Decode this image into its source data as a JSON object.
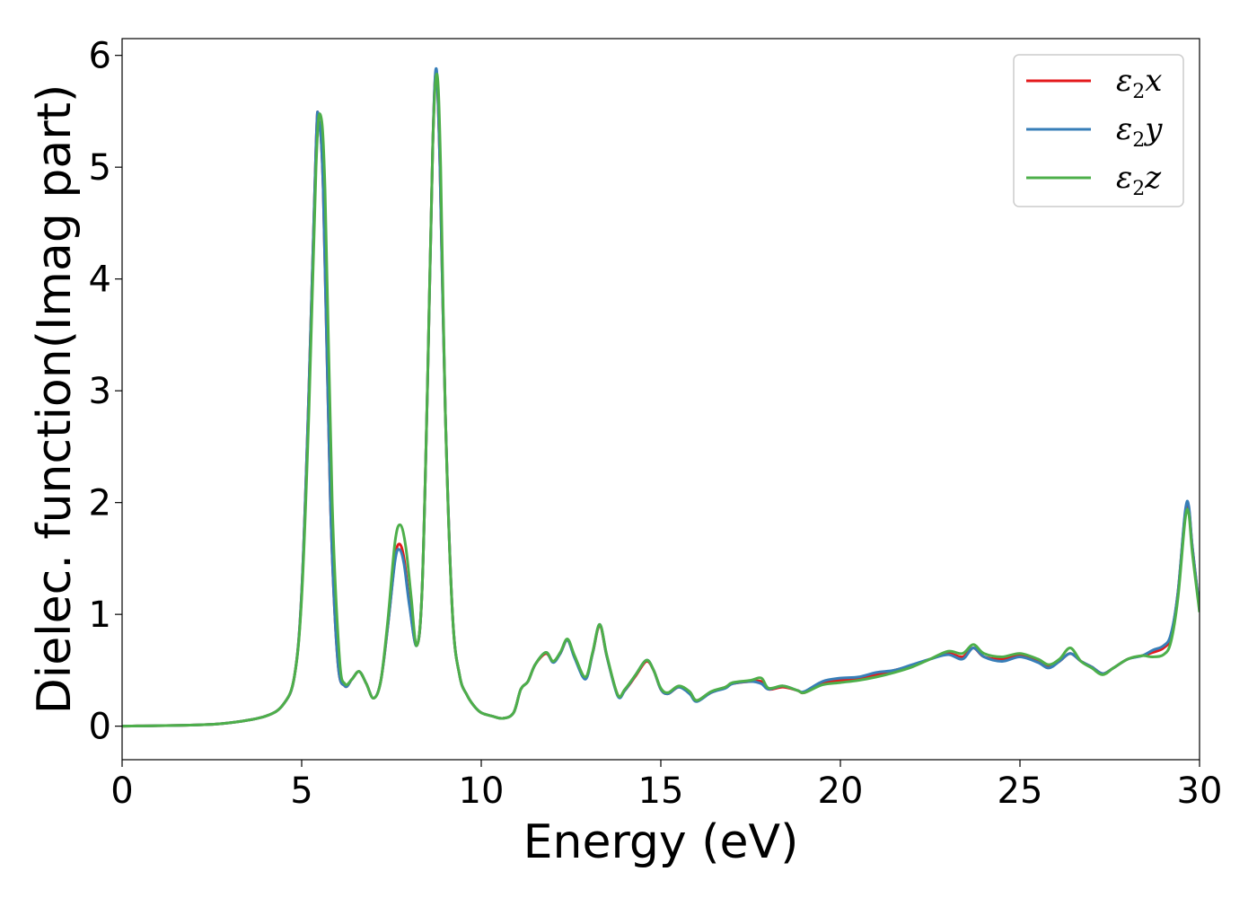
{
  "chart_data": {
    "type": "line",
    "xlabel": "Energy (eV)",
    "ylabel": "Dielec. function(Imag part)",
    "xlim": [
      0,
      30
    ],
    "ylim": [
      -0.3,
      6.15
    ],
    "xticks": [
      0,
      5,
      10,
      15,
      20,
      25,
      30
    ],
    "yticks": [
      0,
      1,
      2,
      3,
      4,
      5,
      6
    ],
    "grid": false,
    "legend_position": "top-right",
    "series": [
      {
        "name": "ε2x",
        "legend": {
          "symbol": "ε",
          "sub": "2",
          "var": "x"
        },
        "color": "#e41a1c",
        "points": [
          [
            0,
            0
          ],
          [
            2,
            0.01
          ],
          [
            3,
            0.03
          ],
          [
            4,
            0.09
          ],
          [
            4.5,
            0.2
          ],
          [
            4.8,
            0.45
          ],
          [
            5.0,
            1.2
          ],
          [
            5.2,
            3.0
          ],
          [
            5.4,
            5.2
          ],
          [
            5.47,
            5.43
          ],
          [
            5.6,
            4.8
          ],
          [
            5.8,
            2.0
          ],
          [
            6.0,
            0.6
          ],
          [
            6.2,
            0.36
          ],
          [
            6.4,
            0.42
          ],
          [
            6.6,
            0.49
          ],
          [
            6.8,
            0.38
          ],
          [
            7.0,
            0.25
          ],
          [
            7.2,
            0.4
          ],
          [
            7.4,
            0.9
          ],
          [
            7.6,
            1.5
          ],
          [
            7.72,
            1.63
          ],
          [
            7.85,
            1.5
          ],
          [
            8.0,
            1.1
          ],
          [
            8.2,
            0.72
          ],
          [
            8.35,
            1.2
          ],
          [
            8.5,
            3.0
          ],
          [
            8.65,
            5.2
          ],
          [
            8.75,
            5.85
          ],
          [
            8.85,
            5.0
          ],
          [
            9.0,
            2.8
          ],
          [
            9.2,
            1.0
          ],
          [
            9.4,
            0.45
          ],
          [
            9.6,
            0.28
          ],
          [
            9.8,
            0.18
          ],
          [
            10.0,
            0.12
          ],
          [
            10.3,
            0.09
          ],
          [
            10.6,
            0.07
          ],
          [
            10.9,
            0.12
          ],
          [
            11.1,
            0.33
          ],
          [
            11.3,
            0.4
          ],
          [
            11.5,
            0.55
          ],
          [
            11.8,
            0.65
          ],
          [
            12.0,
            0.58
          ],
          [
            12.2,
            0.65
          ],
          [
            12.4,
            0.77
          ],
          [
            12.6,
            0.62
          ],
          [
            12.9,
            0.43
          ],
          [
            13.1,
            0.65
          ],
          [
            13.3,
            0.9
          ],
          [
            13.5,
            0.62
          ],
          [
            13.8,
            0.28
          ],
          [
            14.0,
            0.32
          ],
          [
            14.3,
            0.45
          ],
          [
            14.6,
            0.58
          ],
          [
            14.8,
            0.5
          ],
          [
            15.0,
            0.33
          ],
          [
            15.2,
            0.29
          ],
          [
            15.5,
            0.35
          ],
          [
            15.8,
            0.3
          ],
          [
            16.0,
            0.23
          ],
          [
            16.4,
            0.3
          ],
          [
            16.8,
            0.35
          ],
          [
            17.0,
            0.38
          ],
          [
            17.5,
            0.4
          ],
          [
            17.8,
            0.4
          ],
          [
            18.0,
            0.33
          ],
          [
            18.4,
            0.35
          ],
          [
            18.8,
            0.32
          ],
          [
            19.0,
            0.3
          ],
          [
            19.5,
            0.38
          ],
          [
            20.0,
            0.41
          ],
          [
            20.5,
            0.42
          ],
          [
            21.0,
            0.46
          ],
          [
            21.5,
            0.5
          ],
          [
            22.0,
            0.54
          ],
          [
            22.5,
            0.6
          ],
          [
            23.0,
            0.65
          ],
          [
            23.4,
            0.62
          ],
          [
            23.7,
            0.7
          ],
          [
            24.0,
            0.62
          ],
          [
            24.5,
            0.6
          ],
          [
            25.0,
            0.63
          ],
          [
            25.5,
            0.58
          ],
          [
            25.8,
            0.53
          ],
          [
            26.1,
            0.58
          ],
          [
            26.4,
            0.65
          ],
          [
            26.7,
            0.58
          ],
          [
            27.0,
            0.53
          ],
          [
            27.3,
            0.47
          ],
          [
            27.6,
            0.52
          ],
          [
            28.0,
            0.6
          ],
          [
            28.4,
            0.63
          ],
          [
            28.7,
            0.66
          ],
          [
            29.0,
            0.7
          ],
          [
            29.2,
            0.8
          ],
          [
            29.4,
            1.2
          ],
          [
            29.6,
            1.9
          ],
          [
            29.7,
            1.95
          ],
          [
            29.8,
            1.6
          ],
          [
            30.0,
            1.05
          ]
        ]
      },
      {
        "name": "ε2y",
        "legend": {
          "symbol": "ε",
          "sub": "2",
          "var": "y"
        },
        "color": "#377eb8",
        "points": [
          [
            0,
            0
          ],
          [
            2,
            0.01
          ],
          [
            3,
            0.03
          ],
          [
            4,
            0.09
          ],
          [
            4.5,
            0.2
          ],
          [
            4.8,
            0.45
          ],
          [
            5.0,
            1.2
          ],
          [
            5.2,
            3.0
          ],
          [
            5.4,
            5.2
          ],
          [
            5.47,
            5.43
          ],
          [
            5.6,
            4.8
          ],
          [
            5.8,
            2.0
          ],
          [
            6.0,
            0.6
          ],
          [
            6.2,
            0.36
          ],
          [
            6.4,
            0.42
          ],
          [
            6.6,
            0.49
          ],
          [
            6.8,
            0.38
          ],
          [
            7.0,
            0.25
          ],
          [
            7.2,
            0.4
          ],
          [
            7.4,
            0.9
          ],
          [
            7.6,
            1.48
          ],
          [
            7.72,
            1.58
          ],
          [
            7.85,
            1.45
          ],
          [
            8.0,
            1.08
          ],
          [
            8.2,
            0.72
          ],
          [
            8.35,
            1.2
          ],
          [
            8.5,
            3.0
          ],
          [
            8.65,
            5.2
          ],
          [
            8.75,
            5.88
          ],
          [
            8.85,
            5.0
          ],
          [
            9.0,
            2.8
          ],
          [
            9.2,
            1.0
          ],
          [
            9.4,
            0.45
          ],
          [
            9.6,
            0.28
          ],
          [
            9.8,
            0.18
          ],
          [
            10.0,
            0.12
          ],
          [
            10.3,
            0.09
          ],
          [
            10.6,
            0.07
          ],
          [
            10.9,
            0.12
          ],
          [
            11.1,
            0.33
          ],
          [
            11.3,
            0.4
          ],
          [
            11.5,
            0.55
          ],
          [
            11.8,
            0.66
          ],
          [
            12.0,
            0.57
          ],
          [
            12.2,
            0.65
          ],
          [
            12.4,
            0.77
          ],
          [
            12.6,
            0.61
          ],
          [
            12.9,
            0.42
          ],
          [
            13.1,
            0.65
          ],
          [
            13.3,
            0.91
          ],
          [
            13.5,
            0.62
          ],
          [
            13.8,
            0.27
          ],
          [
            14.0,
            0.32
          ],
          [
            14.3,
            0.46
          ],
          [
            14.6,
            0.59
          ],
          [
            14.8,
            0.5
          ],
          [
            15.0,
            0.33
          ],
          [
            15.2,
            0.29
          ],
          [
            15.5,
            0.35
          ],
          [
            15.8,
            0.29
          ],
          [
            16.0,
            0.22
          ],
          [
            16.4,
            0.3
          ],
          [
            16.8,
            0.34
          ],
          [
            17.0,
            0.38
          ],
          [
            17.5,
            0.4
          ],
          [
            17.8,
            0.38
          ],
          [
            18.0,
            0.33
          ],
          [
            18.4,
            0.36
          ],
          [
            18.8,
            0.32
          ],
          [
            19.0,
            0.31
          ],
          [
            19.5,
            0.4
          ],
          [
            20.0,
            0.43
          ],
          [
            20.5,
            0.44
          ],
          [
            21.0,
            0.48
          ],
          [
            21.5,
            0.5
          ],
          [
            22.0,
            0.55
          ],
          [
            22.5,
            0.6
          ],
          [
            23.0,
            0.64
          ],
          [
            23.4,
            0.6
          ],
          [
            23.7,
            0.7
          ],
          [
            24.0,
            0.62
          ],
          [
            24.5,
            0.58
          ],
          [
            25.0,
            0.62
          ],
          [
            25.5,
            0.57
          ],
          [
            25.8,
            0.52
          ],
          [
            26.1,
            0.58
          ],
          [
            26.4,
            0.65
          ],
          [
            26.7,
            0.58
          ],
          [
            27.0,
            0.53
          ],
          [
            27.3,
            0.47
          ],
          [
            27.6,
            0.52
          ],
          [
            28.0,
            0.6
          ],
          [
            28.4,
            0.63
          ],
          [
            28.7,
            0.68
          ],
          [
            29.0,
            0.72
          ],
          [
            29.2,
            0.82
          ],
          [
            29.4,
            1.2
          ],
          [
            29.6,
            1.92
          ],
          [
            29.7,
            1.97
          ],
          [
            29.8,
            1.6
          ],
          [
            30.0,
            1.05
          ]
        ]
      },
      {
        "name": "ε2z",
        "legend": {
          "symbol": "ε",
          "sub": "2",
          "var": "z"
        },
        "color": "#4daf4a",
        "points": [
          [
            0,
            0
          ],
          [
            2,
            0.01
          ],
          [
            3,
            0.03
          ],
          [
            4,
            0.09
          ],
          [
            4.5,
            0.2
          ],
          [
            4.8,
            0.45
          ],
          [
            5.0,
            1.15
          ],
          [
            5.2,
            2.8
          ],
          [
            5.4,
            5.0
          ],
          [
            5.52,
            5.47
          ],
          [
            5.65,
            4.8
          ],
          [
            5.85,
            2.0
          ],
          [
            6.05,
            0.62
          ],
          [
            6.2,
            0.38
          ],
          [
            6.4,
            0.42
          ],
          [
            6.6,
            0.49
          ],
          [
            6.8,
            0.38
          ],
          [
            7.0,
            0.25
          ],
          [
            7.2,
            0.4
          ],
          [
            7.4,
            0.95
          ],
          [
            7.6,
            1.65
          ],
          [
            7.75,
            1.8
          ],
          [
            7.9,
            1.6
          ],
          [
            8.05,
            1.15
          ],
          [
            8.2,
            0.72
          ],
          [
            8.35,
            1.2
          ],
          [
            8.5,
            3.0
          ],
          [
            8.65,
            5.2
          ],
          [
            8.77,
            5.83
          ],
          [
            8.87,
            5.0
          ],
          [
            9.0,
            2.8
          ],
          [
            9.2,
            1.0
          ],
          [
            9.4,
            0.45
          ],
          [
            9.6,
            0.28
          ],
          [
            9.8,
            0.18
          ],
          [
            10.0,
            0.12
          ],
          [
            10.3,
            0.09
          ],
          [
            10.6,
            0.07
          ],
          [
            10.9,
            0.12
          ],
          [
            11.1,
            0.33
          ],
          [
            11.3,
            0.4
          ],
          [
            11.5,
            0.55
          ],
          [
            11.8,
            0.66
          ],
          [
            12.0,
            0.58
          ],
          [
            12.2,
            0.66
          ],
          [
            12.4,
            0.78
          ],
          [
            12.6,
            0.63
          ],
          [
            12.9,
            0.44
          ],
          [
            13.1,
            0.66
          ],
          [
            13.3,
            0.91
          ],
          [
            13.5,
            0.63
          ],
          [
            13.8,
            0.28
          ],
          [
            14.0,
            0.33
          ],
          [
            14.3,
            0.46
          ],
          [
            14.6,
            0.59
          ],
          [
            14.8,
            0.5
          ],
          [
            15.0,
            0.34
          ],
          [
            15.2,
            0.3
          ],
          [
            15.5,
            0.36
          ],
          [
            15.8,
            0.31
          ],
          [
            16.0,
            0.23
          ],
          [
            16.4,
            0.31
          ],
          [
            16.8,
            0.35
          ],
          [
            17.0,
            0.39
          ],
          [
            17.5,
            0.41
          ],
          [
            17.8,
            0.43
          ],
          [
            18.0,
            0.34
          ],
          [
            18.4,
            0.36
          ],
          [
            18.8,
            0.32
          ],
          [
            19.0,
            0.3
          ],
          [
            19.5,
            0.37
          ],
          [
            20.0,
            0.39
          ],
          [
            20.5,
            0.41
          ],
          [
            21.0,
            0.44
          ],
          [
            21.5,
            0.48
          ],
          [
            22.0,
            0.53
          ],
          [
            22.5,
            0.6
          ],
          [
            23.0,
            0.67
          ],
          [
            23.4,
            0.65
          ],
          [
            23.7,
            0.73
          ],
          [
            24.0,
            0.65
          ],
          [
            24.5,
            0.62
          ],
          [
            25.0,
            0.65
          ],
          [
            25.5,
            0.6
          ],
          [
            25.8,
            0.55
          ],
          [
            26.1,
            0.6
          ],
          [
            26.4,
            0.7
          ],
          [
            26.7,
            0.58
          ],
          [
            27.0,
            0.52
          ],
          [
            27.3,
            0.46
          ],
          [
            27.6,
            0.52
          ],
          [
            28.0,
            0.6
          ],
          [
            28.4,
            0.63
          ],
          [
            28.7,
            0.62
          ],
          [
            29.0,
            0.64
          ],
          [
            29.2,
            0.75
          ],
          [
            29.4,
            1.15
          ],
          [
            29.6,
            1.85
          ],
          [
            29.7,
            1.9
          ],
          [
            29.8,
            1.55
          ],
          [
            30.0,
            1.02
          ]
        ]
      }
    ]
  }
}
